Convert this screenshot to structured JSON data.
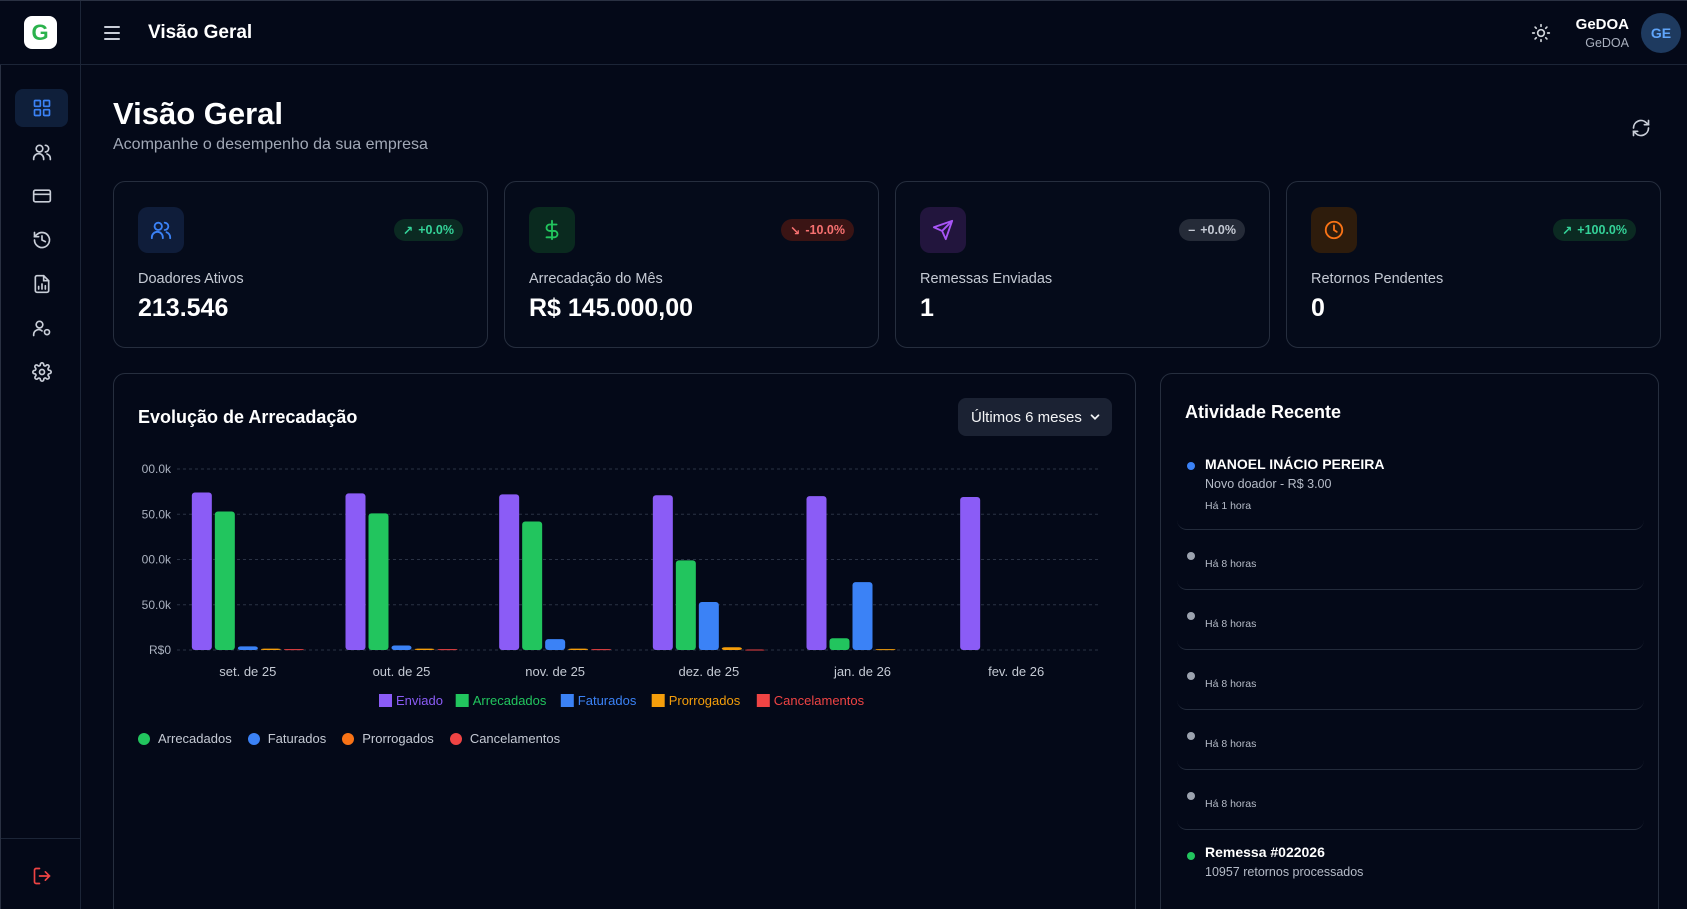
{
  "header": {
    "logo_letter": "G",
    "title": "Visão Geral",
    "user_name": "GeDOA",
    "user_org": "GeDOA",
    "avatar_initials": "GE"
  },
  "sidebar": {
    "items": [
      {
        "icon": "dashboard-icon",
        "active": true
      },
      {
        "icon": "users-icon",
        "active": false
      },
      {
        "icon": "credit-card-icon",
        "active": false
      },
      {
        "icon": "history-icon",
        "active": false
      },
      {
        "icon": "report-icon",
        "active": false
      },
      {
        "icon": "user-settings-icon",
        "active": false
      },
      {
        "icon": "gear-icon",
        "active": false
      }
    ],
    "logout_icon": "logout-icon"
  },
  "page": {
    "title": "Visão Geral",
    "subtitle": "Acompanhe o desempenho da sua empresa"
  },
  "stats": [
    {
      "label": "Doadores Ativos",
      "value": "213.546",
      "badge": "+0.0%",
      "trend": "up",
      "icon": "users-icon",
      "color": "#3b82f6"
    },
    {
      "label": "Arrecadação do Mês",
      "value": "R$ 145.000,00",
      "badge": "-10.0%",
      "trend": "down",
      "icon": "dollar-icon",
      "color": "#22c55e"
    },
    {
      "label": "Remessas Enviadas",
      "value": "1",
      "badge": "+0.0%",
      "trend": "flat",
      "icon": "send-icon",
      "color": "#a855f7"
    },
    {
      "label": "Retornos Pendentes",
      "value": "0",
      "badge": "+100.0%",
      "trend": "up",
      "icon": "clock-icon",
      "color": "#f97316"
    }
  ],
  "chart_section": {
    "title": "Evolução de Arrecadação",
    "range_label": "Últimos 6 meses",
    "bottom_legend": [
      "Arrecadados",
      "Faturados",
      "Prorrogados",
      "Cancelamentos"
    ]
  },
  "chart_data": {
    "type": "bar",
    "categories": [
      "set. de 25",
      "out. de 25",
      "nov. de 25",
      "dez. de 25",
      "jan. de 26",
      "fev. de 26"
    ],
    "y_tick_labels": [
      "R$0",
      "50.0k",
      "00.0k",
      "50.0k",
      "00.0k"
    ],
    "ylim": [
      0,
      200000
    ],
    "grid": true,
    "legend_position": "bottom",
    "series": [
      {
        "name": "Enviado",
        "color": "#8b5cf6",
        "values": [
          174000,
          173000,
          172000,
          171000,
          170000,
          169000
        ]
      },
      {
        "name": "Arrecadados",
        "color": "#22c55e",
        "values": [
          153000,
          151000,
          142000,
          99000,
          13000,
          0
        ]
      },
      {
        "name": "Faturados",
        "color": "#3b82f6",
        "values": [
          4000,
          5000,
          12000,
          53000,
          75000,
          0
        ]
      },
      {
        "name": "Prorrogados",
        "color": "#f59e0b",
        "values": [
          1500,
          1500,
          1500,
          3000,
          1000,
          0
        ]
      },
      {
        "name": "Cancelamentos",
        "color": "#ef4444",
        "values": [
          1000,
          1000,
          1000,
          500,
          0,
          0
        ]
      }
    ]
  },
  "activity": {
    "title": "Atividade Recente",
    "items": [
      {
        "name": "MANOEL INÁCIO PEREIRA",
        "desc": "Novo doador - R$ 3.00",
        "time": "Há 1 hora",
        "dot": "#3b82f6"
      },
      {
        "name": "",
        "desc": "",
        "time": "Há 8 horas",
        "dot": "#9ca3af"
      },
      {
        "name": "",
        "desc": "",
        "time": "Há 8 horas",
        "dot": "#9ca3af"
      },
      {
        "name": "",
        "desc": "",
        "time": "Há 8 horas",
        "dot": "#9ca3af"
      },
      {
        "name": "",
        "desc": "",
        "time": "Há 8 horas",
        "dot": "#9ca3af"
      },
      {
        "name": "",
        "desc": "",
        "time": "Há 8 horas",
        "dot": "#9ca3af"
      },
      {
        "name": "Remessa #022026",
        "desc": "10957 retornos processados",
        "time": "",
        "dot": "#22c55e"
      }
    ]
  }
}
